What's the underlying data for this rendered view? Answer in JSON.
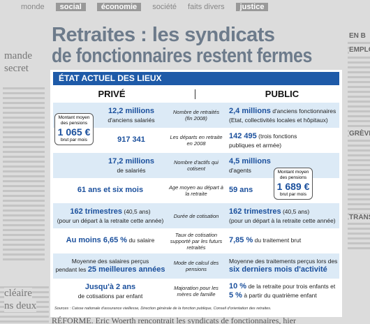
{
  "nav": [
    "monde",
    "social",
    "économie",
    "société",
    "faits divers",
    "justice"
  ],
  "side_left": [
    "mande",
    "secret",
    "cléaire",
    "ns deux"
  ],
  "side_right": [
    "EN B",
    "EMPLO",
    "GRÈVE",
    "TRANS"
  ],
  "headline": [
    "Retraites : les syndicats",
    "de fonctionnaires restent fermes"
  ],
  "infographic": {
    "title": "ÉTAT ACTUEL DES LIEUX",
    "columns": [
      "PRIVÉ",
      "PUBLIC"
    ],
    "rows": [
      {
        "prive": [
          [
            {
              "text": "12,2 millions",
              "em": true
            }
          ],
          [
            {
              "text": "d'anciens salariés"
            }
          ]
        ],
        "critere": "Nombre de retraités (fin 2008)",
        "public": [
          [
            {
              "text": "2,4 millions",
              "em": true
            },
            {
              "text": " d'anciens fonctionnaires"
            }
          ],
          [
            {
              "text": "(Etat, collectivités locales et hôpitaux)"
            }
          ]
        ]
      },
      {
        "prive": [
          [
            {
              "text": "917 341",
              "em": true
            }
          ]
        ],
        "critere": "Les départs en retraite en 2008",
        "public": [
          [
            {
              "text": "142 495",
              "em": true
            },
            {
              "text": " (trois fonctions"
            }
          ],
          [
            {
              "text": "publiques et armée)"
            }
          ]
        ]
      },
      {
        "prive": [
          [
            {
              "text": "17,2 millions",
              "em": true
            }
          ],
          [
            {
              "text": "de salariés"
            }
          ]
        ],
        "critere": "Nombre d'actifs qui cotisent",
        "public": [
          [
            {
              "text": "4,5 millions",
              "em": true
            }
          ],
          [
            {
              "text": "d'agents"
            }
          ]
        ]
      },
      {
        "prive": [
          [
            {
              "text": "61 ans et six mois",
              "em": true
            }
          ]
        ],
        "critere": "Age moyen au départ à la retraite",
        "public": [
          [
            {
              "text": "59 ans",
              "em": true
            }
          ]
        ]
      },
      {
        "prive": [
          [
            {
              "text": "162 trimestres",
              "em": true
            },
            {
              "text": " (40,5 ans)"
            }
          ],
          [
            {
              "text": "(pour un départ à la retraite cette année)"
            }
          ]
        ],
        "critere": "Durée de cotisation",
        "public": [
          [
            {
              "text": "162 trimestres",
              "em": true
            },
            {
              "text": " (40,5 ans)"
            }
          ],
          [
            {
              "text": "(pour un départ à la retraite cette année)"
            }
          ]
        ]
      },
      {
        "prive": [
          [
            {
              "text": "Au moins 6,65 %",
              "em": true
            },
            {
              "text": " du salaire"
            }
          ]
        ],
        "critere": "Taux de cotisation supporté par les futurs retraités",
        "public": [
          [
            {
              "text": "7,85 %",
              "em": true
            },
            {
              "text": " du traitement brut"
            }
          ]
        ]
      },
      {
        "prive": [
          [
            {
              "text": "Moyenne des salaires perçus"
            }
          ],
          [
            {
              "text": "pendant les "
            },
            {
              "text": "25 meilleures années",
              "em": true
            }
          ]
        ],
        "critere": "Mode de calcul des pensions",
        "public": [
          [
            {
              "text": "Moyenne des traitements perçus lors des"
            }
          ],
          [
            {
              "text": "six derniers mois d'activité",
              "em": true
            }
          ]
        ]
      },
      {
        "prive": [
          [
            {
              "text": "Jusqu'à 2 ans",
              "em": true
            }
          ],
          [
            {
              "text": "de cotisations par enfant"
            }
          ]
        ],
        "critere": "Majoration pour les mères de famille",
        "public": [
          [
            {
              "text": "10 %",
              "em": true
            },
            {
              "text": " de la retraite pour trois enfants et"
            }
          ],
          [
            {
              "text": "5 %",
              "em": true
            },
            {
              "text": " à partir du quatrième enfant"
            }
          ]
        ]
      }
    ],
    "pension_prive": {
      "label": "Montant moyen des pensions",
      "amount": "1 065 €",
      "note": "brut par mois"
    },
    "pension_public": {
      "label": "Montant moyen des pensions",
      "amount": "1 689 €",
      "note": "brut par mois"
    },
    "sources": "Sources : Caisse nationale d'assurance vieillesse, Direction générale de la fonction publique, Conseil d'orientation des retraites."
  },
  "footer_article": "RÉFORME. Eric Woerth rencontrait les syndicats de fonctionnaires, hier"
}
